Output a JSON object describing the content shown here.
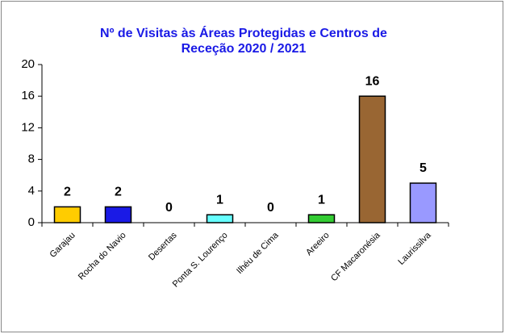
{
  "chart_data": {
    "type": "bar",
    "title": [
      "Nº de Visitas às Áreas Protegidas e Centros de",
      "Receção 2020 / 2021"
    ],
    "categories": [
      "Garajau",
      "Rocha do Navio",
      "Desertas",
      "Ponta S. Lourenço",
      "Ilhéu de Cima",
      "Areeiro",
      "CF Macaronésia",
      "Laurissilva"
    ],
    "values": [
      2,
      2,
      0,
      1,
      0,
      1,
      16,
      5
    ],
    "colors": [
      "#ffcc00",
      "#1a1ae6",
      "#808080",
      "#66ffff",
      "#808080",
      "#33cc33",
      "#996633",
      "#9999ff"
    ],
    "ylim": [
      0,
      20
    ],
    "yticks": [
      0,
      4,
      8,
      12,
      16,
      20
    ],
    "grid": false
  }
}
